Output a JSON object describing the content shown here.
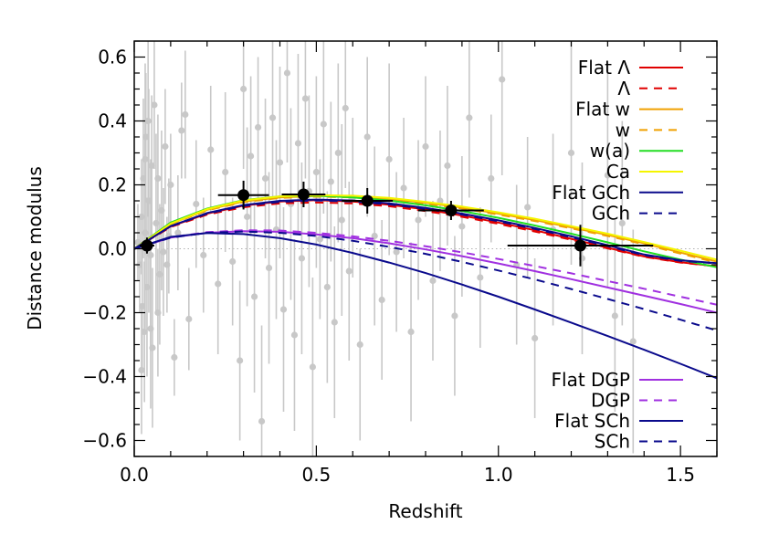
{
  "chart_data": {
    "type": "scatter",
    "xlabel": "Redshift",
    "ylabel": "Distance modulus",
    "xlim": [
      0.0,
      1.6
    ],
    "ylim": [
      -0.65,
      0.65
    ],
    "xticks": [
      0.0,
      0.5,
      1.0,
      1.5
    ],
    "xtick_labels": [
      "0.0",
      "0.5",
      "1.0",
      "1.5"
    ],
    "yticks": [
      -0.6,
      -0.4,
      -0.2,
      0.0,
      0.2,
      0.4,
      0.6
    ],
    "ytick_labels": [
      "−0.6",
      "−0.4",
      "−0.2",
      "0.0",
      "0.2",
      "0.4",
      "0.6"
    ],
    "zero_reference_line": {
      "y": 0.0,
      "style": "dotted",
      "color": "#b0b0b0"
    },
    "legend_placement_top": "top-right",
    "legend_placement_bottom": "bottom-right",
    "data_points": {
      "color": "#c8c8c8",
      "errorbar_color": "#c8c8c8",
      "points": [
        [
          0.01,
          0.02,
          0.12
        ],
        [
          0.015,
          -0.05,
          0.15
        ],
        [
          0.02,
          0.1,
          0.18
        ],
        [
          0.022,
          -0.18,
          0.2
        ],
        [
          0.025,
          0.22,
          0.25
        ],
        [
          0.028,
          -0.26,
          0.22
        ],
        [
          0.03,
          0.05,
          0.3
        ],
        [
          0.032,
          0.35,
          0.2
        ],
        [
          0.035,
          -0.12,
          0.28
        ],
        [
          0.038,
          0.4,
          0.3
        ],
        [
          0.04,
          0.15,
          0.35
        ],
        [
          0.045,
          -0.02,
          0.3
        ],
        [
          0.048,
          0.26,
          0.22
        ],
        [
          0.05,
          -0.31,
          0.25
        ],
        [
          0.055,
          0.45,
          0.2
        ],
        [
          0.06,
          0.08,
          0.28
        ],
        [
          0.065,
          0.22,
          0.2
        ],
        [
          0.07,
          -0.08,
          0.22
        ],
        [
          0.075,
          0.12,
          0.25
        ],
        [
          0.08,
          -0.01,
          0.2
        ],
        [
          0.085,
          0.32,
          0.18
        ],
        [
          0.09,
          -0.05,
          0.15
        ],
        [
          0.1,
          0.2,
          0.16
        ],
        [
          0.11,
          -0.34,
          0.12
        ],
        [
          0.12,
          0.05,
          0.18
        ],
        [
          0.13,
          0.37,
          0.15
        ],
        [
          0.15,
          -0.22,
          0.16
        ],
        [
          0.17,
          0.14,
          0.2
        ],
        [
          0.19,
          -0.02,
          0.18
        ],
        [
          0.21,
          0.31,
          0.2
        ],
        [
          0.23,
          -0.11,
          0.22
        ],
        [
          0.25,
          0.24,
          0.25
        ],
        [
          0.27,
          -0.04,
          0.2
        ],
        [
          0.29,
          -0.35,
          0.25
        ],
        [
          0.3,
          0.5,
          0.25
        ],
        [
          0.31,
          0.1,
          0.28
        ],
        [
          0.32,
          0.29,
          0.25
        ],
        [
          0.33,
          -0.15,
          0.3
        ],
        [
          0.34,
          0.38,
          0.22
        ],
        [
          0.35,
          -0.54,
          0.3
        ],
        [
          0.36,
          0.22,
          0.25
        ],
        [
          0.37,
          -0.06,
          0.3
        ],
        [
          0.38,
          0.41,
          0.25
        ],
        [
          0.39,
          0.06,
          0.28
        ],
        [
          0.4,
          0.27,
          0.3
        ],
        [
          0.41,
          -0.19,
          0.32
        ],
        [
          0.42,
          0.55,
          0.28
        ],
        [
          0.43,
          0.14,
          0.3
        ],
        [
          0.44,
          -0.27,
          0.3
        ],
        [
          0.45,
          0.33,
          0.28
        ],
        [
          0.46,
          -0.03,
          0.3
        ],
        [
          0.47,
          0.47,
          0.25
        ],
        [
          0.48,
          0.18,
          0.3
        ],
        [
          0.49,
          -0.37,
          0.28
        ],
        [
          0.5,
          0.24,
          0.3
        ],
        [
          0.51,
          0.03,
          0.25
        ],
        [
          0.52,
          0.39,
          0.28
        ],
        [
          0.53,
          -0.12,
          0.3
        ],
        [
          0.54,
          0.21,
          0.25
        ],
        [
          0.55,
          -0.23,
          0.3
        ],
        [
          0.56,
          0.3,
          0.28
        ],
        [
          0.57,
          0.09,
          0.3
        ],
        [
          0.58,
          0.44,
          0.25
        ],
        [
          0.59,
          -0.07,
          0.28
        ],
        [
          0.6,
          0.16,
          0.25
        ],
        [
          0.62,
          -0.3,
          0.3
        ],
        [
          0.64,
          0.35,
          0.25
        ],
        [
          0.66,
          0.04,
          0.28
        ],
        [
          0.68,
          -0.16,
          0.25
        ],
        [
          0.7,
          0.28,
          0.3
        ],
        [
          0.72,
          -0.01,
          0.25
        ],
        [
          0.74,
          0.19,
          0.22
        ],
        [
          0.76,
          -0.26,
          0.28
        ],
        [
          0.78,
          0.09,
          0.25
        ],
        [
          0.8,
          0.32,
          0.22
        ],
        [
          0.82,
          -0.1,
          0.25
        ],
        [
          0.84,
          0.15,
          0.22
        ],
        [
          0.86,
          0.26,
          0.25
        ],
        [
          0.88,
          -0.21,
          0.25
        ],
        [
          0.9,
          0.07,
          0.22
        ],
        [
          0.92,
          0.41,
          0.25
        ],
        [
          0.95,
          -0.09,
          0.22
        ],
        [
          0.98,
          0.22,
          0.2
        ],
        [
          1.01,
          0.53,
          0.3
        ],
        [
          1.05,
          -0.05,
          0.25
        ],
        [
          1.08,
          0.13,
          0.22
        ],
        [
          1.1,
          -0.28,
          0.25
        ],
        [
          1.15,
          0.06,
          0.3
        ],
        [
          1.2,
          0.3,
          0.35
        ],
        [
          1.23,
          -0.03,
          0.3
        ],
        [
          1.3,
          0.23,
          0.35
        ],
        [
          1.32,
          -0.21,
          0.3
        ],
        [
          1.34,
          0.08,
          0.32
        ],
        [
          1.37,
          -0.29,
          0.35
        ],
        [
          0.02,
          -0.38,
          0.2
        ],
        [
          0.03,
          0.28,
          0.3
        ],
        [
          0.045,
          -0.25,
          0.25
        ],
        [
          0.065,
          -0.2,
          0.2
        ],
        [
          0.095,
          0.04,
          0.18
        ],
        [
          0.14,
          0.42,
          0.2
        ]
      ]
    },
    "binned_points": {
      "color": "#000000",
      "points": [
        {
          "x": 0.035,
          "y": 0.01,
          "xerr": 0.02,
          "yerr": 0.025
        },
        {
          "x": 0.3,
          "y": 0.168,
          "xerr": 0.07,
          "yerr": 0.045
        },
        {
          "x": 0.465,
          "y": 0.17,
          "xerr": 0.06,
          "yerr": 0.04
        },
        {
          "x": 0.64,
          "y": 0.15,
          "xerr": 0.07,
          "yerr": 0.04
        },
        {
          "x": 0.87,
          "y": 0.12,
          "xerr": 0.09,
          "yerr": 0.03
        },
        {
          "x": 1.225,
          "y": 0.01,
          "xerr": 0.2,
          "yerr": 0.065
        }
      ]
    },
    "series": [
      {
        "name": "Flat Λ",
        "legend_group": "top",
        "color": "#e00000",
        "dash": false,
        "x": [
          0,
          0.1,
          0.2,
          0.3,
          0.4,
          0.5,
          0.6,
          0.7,
          0.8,
          0.9,
          1.0,
          1.1,
          1.2,
          1.3,
          1.4,
          1.5,
          1.6
        ],
        "y": [
          0.0,
          0.07,
          0.11,
          0.135,
          0.148,
          0.152,
          0.148,
          0.138,
          0.123,
          0.104,
          0.082,
          0.058,
          0.031,
          0.003,
          -0.024,
          -0.042,
          -0.055
        ]
      },
      {
        "name": "Λ",
        "legend_group": "top",
        "color": "#e00000",
        "dash": true,
        "x": [
          0,
          0.1,
          0.2,
          0.3,
          0.4,
          0.5,
          0.6,
          0.7,
          0.8,
          0.9,
          1.0,
          1.1,
          1.2,
          1.3,
          1.4,
          1.5,
          1.6
        ],
        "y": [
          0.0,
          0.068,
          0.107,
          0.13,
          0.142,
          0.145,
          0.142,
          0.133,
          0.118,
          0.1,
          0.078,
          0.054,
          0.028,
          0.001,
          -0.025,
          -0.043,
          -0.055
        ]
      },
      {
        "name": "Flat w",
        "legend_group": "top",
        "color": "#f0a000",
        "dash": false,
        "x": [
          0,
          0.1,
          0.2,
          0.3,
          0.4,
          0.5,
          0.6,
          0.7,
          0.8,
          0.9,
          1.0,
          1.1,
          1.2,
          1.3,
          1.4,
          1.5,
          1.6
        ],
        "y": [
          0.0,
          0.078,
          0.122,
          0.148,
          0.161,
          0.165,
          0.163,
          0.156,
          0.144,
          0.129,
          0.11,
          0.09,
          0.067,
          0.043,
          0.017,
          -0.012,
          -0.04
        ]
      },
      {
        "name": "w",
        "legend_group": "top",
        "color": "#f0a000",
        "dash": true,
        "x": [
          0,
          0.1,
          0.2,
          0.3,
          0.4,
          0.5,
          0.6,
          0.7,
          0.8,
          0.9,
          1.0,
          1.1,
          1.2,
          1.3,
          1.4,
          1.5,
          1.6
        ],
        "y": [
          0.0,
          0.077,
          0.12,
          0.146,
          0.159,
          0.163,
          0.161,
          0.153,
          0.141,
          0.126,
          0.107,
          0.087,
          0.064,
          0.04,
          0.014,
          -0.015,
          -0.043
        ]
      },
      {
        "name": "w(a)",
        "legend_group": "top",
        "color": "#22dd22",
        "dash": false,
        "x": [
          0,
          0.1,
          0.2,
          0.3,
          0.4,
          0.5,
          0.6,
          0.7,
          0.8,
          0.9,
          1.0,
          1.1,
          1.2,
          1.3,
          1.4,
          1.5,
          1.6
        ],
        "y": [
          0.0,
          0.082,
          0.126,
          0.152,
          0.164,
          0.166,
          0.161,
          0.151,
          0.136,
          0.118,
          0.097,
          0.073,
          0.047,
          0.02,
          -0.008,
          -0.034,
          -0.058
        ]
      },
      {
        "name": "Ca",
        "legend_group": "top",
        "color": "#f5f500",
        "dash": false,
        "x": [
          0,
          0.1,
          0.2,
          0.3,
          0.4,
          0.5,
          0.6,
          0.7,
          0.8,
          0.9,
          1.0,
          1.1,
          1.2,
          1.3,
          1.4,
          1.5,
          1.6
        ],
        "y": [
          0.0,
          0.079,
          0.124,
          0.151,
          0.164,
          0.168,
          0.166,
          0.159,
          0.147,
          0.132,
          0.114,
          0.094,
          0.071,
          0.047,
          0.021,
          -0.006,
          -0.034
        ]
      },
      {
        "name": "Flat GCh",
        "legend_group": "top",
        "color": "#0a0a8c",
        "dash": false,
        "x": [
          0,
          0.1,
          0.2,
          0.3,
          0.4,
          0.5,
          0.6,
          0.7,
          0.8,
          0.9,
          1.0,
          1.1,
          1.2,
          1.3,
          1.4,
          1.5,
          1.6
        ],
        "y": [
          0.0,
          0.071,
          0.112,
          0.137,
          0.15,
          0.154,
          0.151,
          0.142,
          0.128,
          0.11,
          0.089,
          0.065,
          0.039,
          0.011,
          -0.018,
          -0.036,
          -0.045
        ]
      },
      {
        "name": "GCh",
        "legend_group": "top",
        "color": "#0a0a8c",
        "dash": true,
        "x": [
          0,
          0.1,
          0.2,
          0.3,
          0.4,
          0.5,
          0.6,
          0.7,
          0.8,
          0.9,
          1.0,
          1.1,
          1.2,
          1.3,
          1.4,
          1.5,
          1.6
        ],
        "y": [
          0.0,
          0.07,
          0.11,
          0.134,
          0.147,
          0.151,
          0.148,
          0.139,
          0.125,
          0.107,
          0.086,
          0.062,
          0.036,
          0.008,
          -0.02,
          -0.038,
          -0.046
        ]
      },
      {
        "name": "Flat DGP",
        "legend_group": "bottom",
        "color": "#a030e0",
        "dash": false,
        "x": [
          0,
          0.1,
          0.2,
          0.3,
          0.4,
          0.5,
          0.6,
          0.7,
          0.8,
          0.9,
          1.0,
          1.1,
          1.2,
          1.3,
          1.4,
          1.5,
          1.6
        ],
        "y": [
          0.0,
          0.035,
          0.05,
          0.055,
          0.053,
          0.045,
          0.033,
          0.017,
          -0.002,
          -0.023,
          -0.046,
          -0.07,
          -0.095,
          -0.121,
          -0.147,
          -0.173,
          -0.2
        ]
      },
      {
        "name": "DGP",
        "legend_group": "bottom",
        "color": "#a030e0",
        "dash": true,
        "x": [
          0,
          0.1,
          0.2,
          0.3,
          0.4,
          0.5,
          0.6,
          0.7,
          0.8,
          0.9,
          1.0,
          1.1,
          1.2,
          1.3,
          1.4,
          1.5,
          1.6
        ],
        "y": [
          0.0,
          0.036,
          0.052,
          0.058,
          0.057,
          0.05,
          0.039,
          0.025,
          0.008,
          -0.011,
          -0.032,
          -0.054,
          -0.077,
          -0.101,
          -0.125,
          -0.15,
          -0.175
        ]
      },
      {
        "name": "Flat SCh",
        "legend_group": "bottom",
        "color": "#0a0a8c",
        "dash": false,
        "x": [
          0,
          0.1,
          0.2,
          0.3,
          0.4,
          0.5,
          0.6,
          0.7,
          0.8,
          0.9,
          1.0,
          1.1,
          1.2,
          1.3,
          1.4,
          1.5,
          1.6
        ],
        "y": [
          0.0,
          0.037,
          0.049,
          0.046,
          0.033,
          0.013,
          -0.013,
          -0.043,
          -0.076,
          -0.112,
          -0.15,
          -0.19,
          -0.231,
          -0.273,
          -0.316,
          -0.36,
          -0.405
        ]
      },
      {
        "name": "SCh",
        "legend_group": "bottom",
        "color": "#0a0a8c",
        "dash": true,
        "x": [
          0,
          0.1,
          0.2,
          0.3,
          0.4,
          0.5,
          0.6,
          0.7,
          0.8,
          0.9,
          1.0,
          1.1,
          1.2,
          1.3,
          1.4,
          1.5,
          1.6
        ],
        "y": [
          0.0,
          0.035,
          0.05,
          0.054,
          0.05,
          0.04,
          0.025,
          0.006,
          -0.016,
          -0.041,
          -0.068,
          -0.096,
          -0.126,
          -0.157,
          -0.189,
          -0.222,
          -0.256
        ]
      }
    ]
  }
}
